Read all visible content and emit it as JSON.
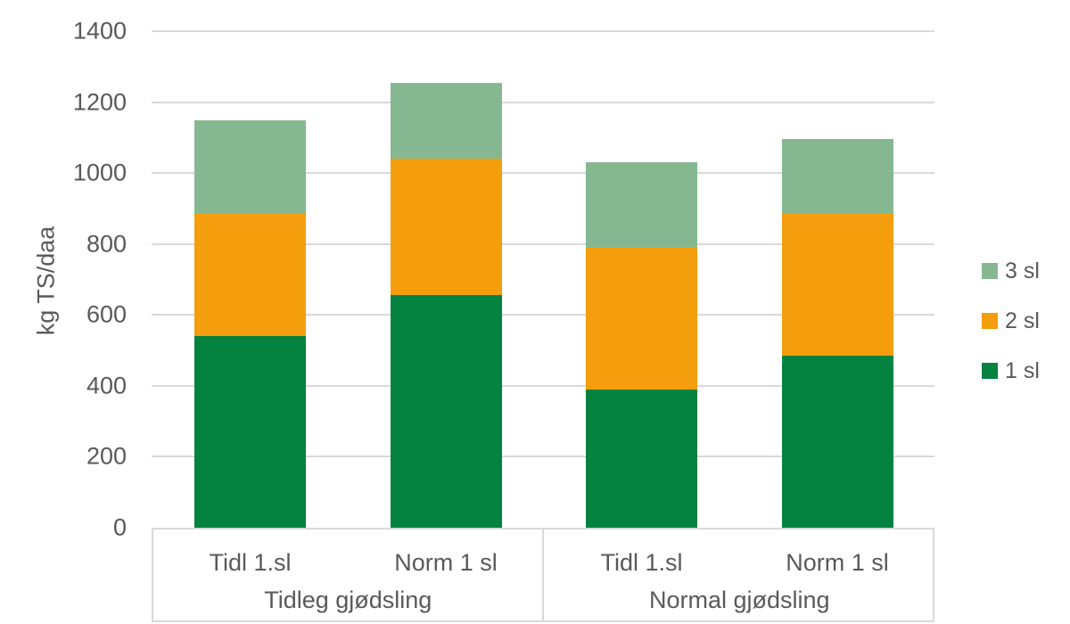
{
  "chart_data": {
    "type": "bar",
    "subtype": "stacked-vertical",
    "title": "",
    "ylabel": "kg TS/daa",
    "xlabel": "",
    "grid": true,
    "y_axis": {
      "min": 0,
      "max": 1400,
      "step": 200,
      "tick_labels": [
        "0",
        "200",
        "400",
        "600",
        "800",
        "1000",
        "1200",
        "1400"
      ]
    },
    "x_axis": {
      "groups": [
        {
          "label": "Tidleg gjødsling",
          "categories": [
            "Tidl 1.sl",
            "Norm 1 sl"
          ]
        },
        {
          "label": "Normal gjødsling",
          "categories": [
            "Tidl 1.sl",
            "Norm 1 sl"
          ]
        }
      ]
    },
    "series": [
      {
        "name": "1 sl",
        "color": "#048240",
        "values": [
          540,
          655,
          390,
          485
        ]
      },
      {
        "name": "2 sl",
        "color": "#F49E0D",
        "values": [
          345,
          385,
          400,
          400
        ]
      },
      {
        "name": "3 sl",
        "color": "#85B890",
        "values": [
          263,
          215,
          240,
          210
        ]
      }
    ],
    "stack_totals": [
      1148,
      1255,
      1030,
      1095
    ],
    "legend": {
      "position": "right",
      "items": [
        "3 sl",
        "2 sl",
        "1 sl"
      ]
    },
    "colors": {
      "text": "#595959",
      "gridline": "#D9D9D9",
      "axis_band_border": "#D9D9D9",
      "background": "#FFFFFF"
    }
  }
}
